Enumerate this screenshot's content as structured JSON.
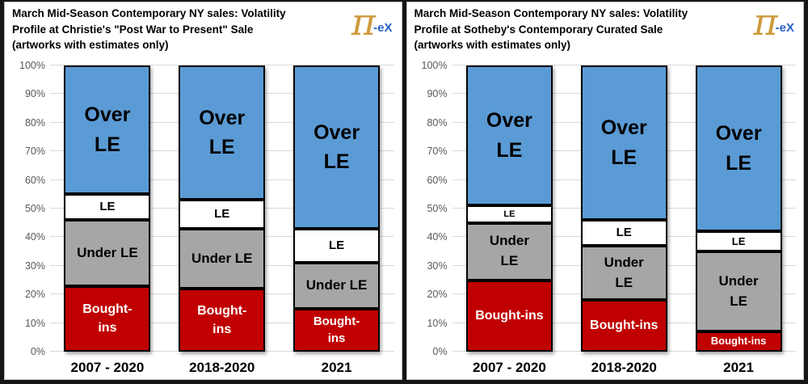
{
  "logo": {
    "pi": "π",
    "suffix": "-eX"
  },
  "chart_data": [
    {
      "type": "bar",
      "stacked": true,
      "orientation": "vertical",
      "title": "March Mid-Season Contemporary NY sales: Volatility\nProfile at Christie's \"Post War to Present\" Sale\n(artworks with estimates only)",
      "categories": [
        "2007 - 2020",
        "2018-2020",
        "2021"
      ],
      "yticks": [
        "0%",
        "10%",
        "20%",
        "30%",
        "40%",
        "50%",
        "60%",
        "70%",
        "80%",
        "90%",
        "100%"
      ],
      "ylim": [
        0,
        100
      ],
      "grid": true,
      "legend": "none",
      "gridline_color": "#D9D9D9",
      "series": [
        {
          "name": "Bought-ins",
          "color": "#C00000",
          "text_color": "#FFFFFF",
          "values": [
            23,
            22,
            15
          ],
          "labels": [
            "Bought-\nins",
            "Bought-\nins",
            "Bought-\nins"
          ]
        },
        {
          "name": "Under LE",
          "color": "#A6A6A6",
          "text_color": "#000000",
          "values": [
            23,
            21,
            16
          ],
          "labels": [
            "Under LE",
            "Under LE",
            "Under LE"
          ]
        },
        {
          "name": "LE",
          "color": "#FFFFFF",
          "text_color": "#000000",
          "values": [
            9,
            10,
            12
          ],
          "labels": [
            "LE",
            "LE",
            "LE"
          ]
        },
        {
          "name": "Over LE",
          "color": "#5B9BD5",
          "text_color": "#000000",
          "values": [
            45,
            47,
            57
          ],
          "labels": [
            "Over\nLE",
            "Over\nLE",
            "Over\nLE"
          ]
        }
      ]
    },
    {
      "type": "bar",
      "stacked": true,
      "orientation": "vertical",
      "title": "March Mid-Season Contemporary NY sales: Volatility\nProfile at Sotheby's Contemporary Curated Sale\n(artworks with estimates only)",
      "categories": [
        "2007 - 2020",
        "2018-2020",
        "2021"
      ],
      "yticks": [
        "0%",
        "10%",
        "20%",
        "30%",
        "40%",
        "50%",
        "60%",
        "70%",
        "80%",
        "90%",
        "100%"
      ],
      "ylim": [
        0,
        100
      ],
      "grid": true,
      "legend": "none",
      "gridline_color": "#D9D9D9",
      "series": [
        {
          "name": "Bought-ins",
          "color": "#C00000",
          "text_color": "#FFFFFF",
          "values": [
            25,
            18,
            7
          ],
          "labels": [
            "Bought-ins",
            "Bought-ins",
            "Bought-ins"
          ]
        },
        {
          "name": "Under LE",
          "color": "#A6A6A6",
          "text_color": "#000000",
          "values": [
            20,
            19,
            28
          ],
          "labels": [
            "Under\nLE",
            "Under\nLE",
            "Under\nLE"
          ]
        },
        {
          "name": "LE",
          "color": "#FFFFFF",
          "text_color": "#000000",
          "values": [
            6,
            9,
            7
          ],
          "labels": [
            "LE",
            "LE",
            "LE"
          ]
        },
        {
          "name": "Over LE",
          "color": "#5B9BD5",
          "text_color": "#000000",
          "values": [
            49,
            54,
            58
          ],
          "labels": [
            "Over\nLE",
            "Over\nLE",
            "Over\nLE"
          ]
        }
      ]
    }
  ]
}
